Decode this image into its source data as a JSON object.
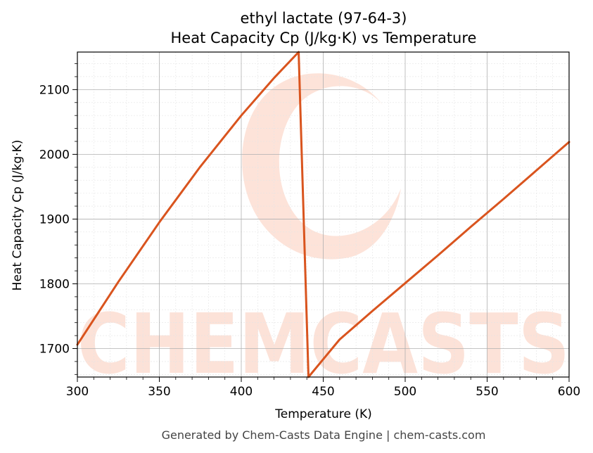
{
  "chart_data": {
    "type": "line",
    "title_line1": "ethyl lactate (97-64-3)",
    "title_line2": "Heat Capacity Cp (J/kg·K) vs Temperature",
    "xlabel": "Temperature (K)",
    "ylabel": "Heat Capacity Cp (J/kg·K)",
    "xlim": [
      300,
      600
    ],
    "ylim": [
      1656,
      2158
    ],
    "x_ticks": [
      300,
      350,
      400,
      450,
      500,
      550,
      600
    ],
    "y_ticks": [
      1700,
      1800,
      1900,
      2000,
      2100
    ],
    "grid": true,
    "line_color": "#d9541e",
    "series": [
      {
        "x": [
          300,
          325,
          350,
          375,
          400,
          420,
          435,
          441,
          460,
          480,
          500,
          520,
          540,
          560,
          580,
          600
        ],
        "y": [
          1706,
          1803,
          1895,
          1981,
          2060,
          2118,
          2158,
          1656,
          1714,
          1758,
          1801,
          1844,
          1888,
          1931,
          1975,
          2019
        ]
      }
    ]
  },
  "watermark": {
    "text": "CHEMCASTS",
    "color": "#fcd9cc"
  },
  "footer": "Generated by Chem-Casts Data Engine | chem-casts.com"
}
